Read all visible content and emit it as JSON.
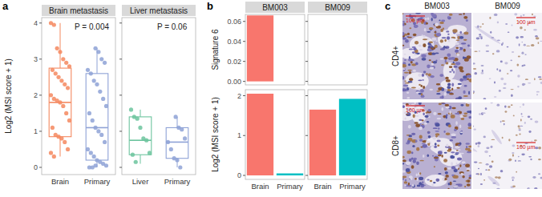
{
  "chart_data": [
    {
      "type": "box",
      "panel_label": "a",
      "title": "Brain metastasis",
      "y_label": "Log2 (MSI score + 1)",
      "categories": [
        "Brain",
        "Primary"
      ],
      "colors": [
        "#F4885F",
        "#8EA2D6"
      ],
      "ylim": [
        -0.2,
        4.15
      ],
      "yticks": [
        0,
        1,
        2,
        3,
        4
      ],
      "annotations": [
        "P = 0.004"
      ],
      "box": [
        [
          0.3,
          0.85,
          1.8,
          2.75,
          4.0
        ],
        [
          0,
          0.2,
          1.1,
          2.6,
          3.3
        ]
      ],
      "points": [
        [
          4.0,
          3.95,
          3.3,
          3.2,
          3.0,
          2.9,
          2.8,
          2.7,
          2.6,
          2.5,
          2.4,
          2.3,
          2.2,
          2.0,
          1.9,
          1.85,
          1.8,
          1.7,
          1.5,
          1.3,
          1.1,
          0.9,
          0.85,
          0.8,
          0.7,
          0.5,
          0.4,
          0.3
        ],
        [
          3.3,
          3.2,
          3.0,
          2.9,
          2.7,
          2.6,
          2.4,
          2.3,
          2.1,
          1.9,
          1.7,
          1.5,
          1.3,
          1.1,
          1.0,
          0.9,
          0.7,
          0.5,
          0.4,
          0.3,
          0.2,
          0.15,
          0.1,
          0.05,
          0,
          0,
          0.05
        ]
      ]
    },
    {
      "type": "box",
      "title": "Liver metastasis",
      "categories": [
        "Liver",
        "Primary"
      ],
      "colors": [
        "#6CC49E",
        "#8EA2D6"
      ],
      "ylim": [
        -0.2,
        4.15
      ],
      "yticks": [
        0,
        1,
        2,
        3,
        4
      ],
      "tick_labels": "x",
      "annotations": [
        "P = 0.06"
      ],
      "box": [
        [
          0.1,
          0.35,
          0.75,
          1.4,
          1.6
        ],
        [
          0,
          0.25,
          0.7,
          1.1,
          1.4
        ]
      ],
      "points": [
        [
          1.6,
          1.4,
          1.35,
          1.1,
          0.8,
          0.75,
          0.4,
          0.35,
          0.15
        ],
        [
          1.4,
          1.1,
          1.05,
          0.8,
          0.7,
          0.5,
          0.25,
          0.2,
          0
        ]
      ]
    },
    {
      "type": "bar",
      "panel_label": "b",
      "title": "BM003",
      "y_label": "Signature 6",
      "values": [
        0.066,
        0
      ],
      "colors": [
        "#F8766D",
        "#00BFC4"
      ],
      "ylim": [
        -0.0035,
        0.067
      ],
      "yticks": [
        {
          "value": 0,
          "label": "0.00"
        },
        {
          "value": 0.02,
          "label": "0.02"
        },
        {
          "value": 0.04,
          "label": "0.04"
        },
        {
          "value": 0.06,
          "label": "0.06"
        }
      ],
      "tick_labels": "y"
    },
    {
      "type": "bar",
      "title": "BM009",
      "values": [
        0,
        0
      ],
      "colors": [
        "#F8766D",
        "#00BFC4"
      ],
      "ylim": [
        -0.0035,
        0.067
      ],
      "yticks": [
        {
          "value": 0,
          "label": "0.00"
        },
        {
          "value": 0.02,
          "label": "0.02"
        },
        {
          "value": 0.04,
          "label": "0.04"
        },
        {
          "value": 0.06,
          "label": "0.06"
        }
      ],
      "tick_labels": false
    },
    {
      "type": "bar",
      "y_label": "Log2 (MSI score + 1)",
      "categories": [
        "Brain",
        "Primary"
      ],
      "values": [
        2.05,
        0.05
      ],
      "colors": [
        "#F8766D",
        "#00BFC4"
      ],
      "ylim": [
        -0.1,
        2.15
      ],
      "yticks": [
        0,
        1,
        2
      ]
    },
    {
      "type": "bar",
      "categories": [
        "Brain",
        "Primary"
      ],
      "values": [
        1.65,
        1.92
      ],
      "colors": [
        "#F8766D",
        "#00BFC4"
      ],
      "ylim": [
        -0.1,
        2.15
      ],
      "yticks": [
        0,
        1,
        2
      ],
      "tick_labels": "x"
    }
  ],
  "image_panel": {
    "panel_label": "c",
    "columns": [
      "BM003",
      "BM009"
    ],
    "rows": [
      "CD4+",
      "CD8+"
    ],
    "scale_bar": "100 µm"
  }
}
